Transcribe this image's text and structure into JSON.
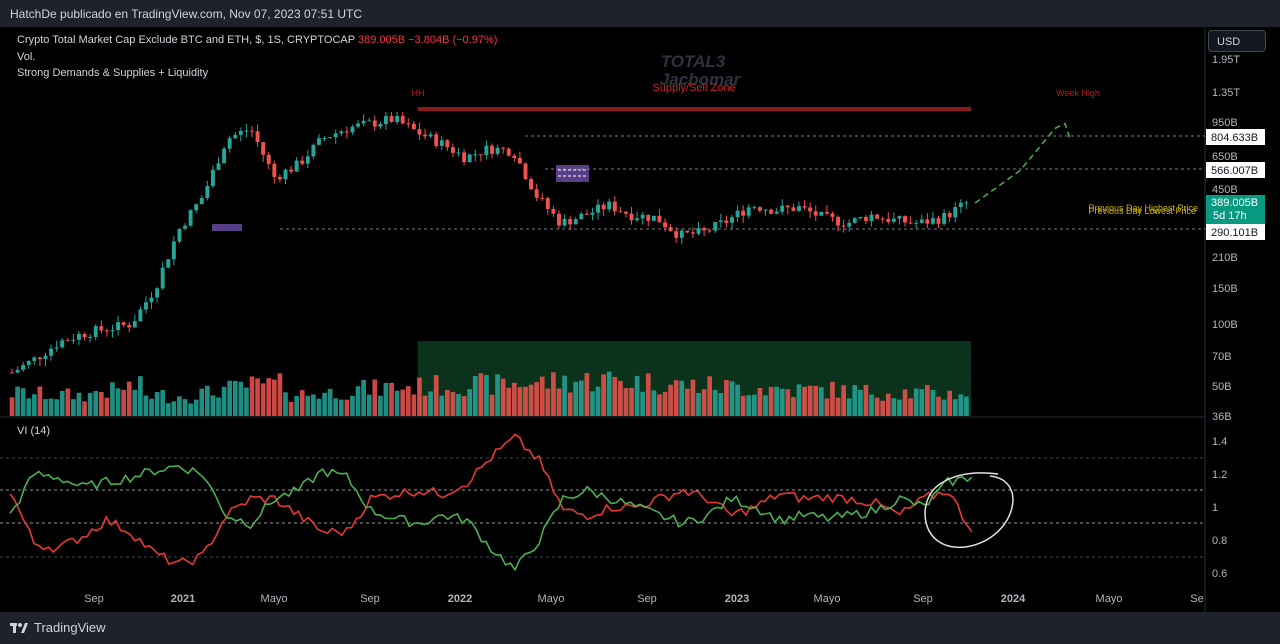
{
  "header": {
    "publish_text": "HatchDe publicado en TradingView.com, Nov 07, 2023 07:51 UTC"
  },
  "legend": {
    "title": "Crypto Total Market Cap Exclude BTC and ETH, $, 1S, CRYPTOCAP",
    "last": "389.005B",
    "change": "−3.804B (−0.97%)",
    "line2": "Vol.",
    "line3": "Strong Demands & Supplies + Liquidity"
  },
  "currency_button": "USD",
  "watermark": {
    "symbol": "TOTAL3",
    "author": "Jacbomar"
  },
  "annotations": {
    "hh": "HH",
    "supply_zone": "Supply/Sell Zone",
    "week_high": "Week High",
    "prev_day_high": "Previous Day Highest Price",
    "prev_day_low": "Previous Day Lowest Price"
  },
  "price_labels": {
    "level_high": "804.633B",
    "level_mid": "566.007B",
    "last": "389.005B",
    "countdown": "5d 17h",
    "level_low": "290.101B"
  },
  "vi_title": "VI (14)",
  "footer": {
    "brand": "TradingView"
  },
  "colors": {
    "up": "#26a69a",
    "down": "#ef5350",
    "vi_plus": "#4caf50",
    "vi_minus": "#e53935",
    "zone_purple": "#7e57c2",
    "supply_red": "#8b1a1a",
    "liquidity_green": "#0d3b1e"
  },
  "chart_data": [
    {
      "type": "candlestick",
      "scale": "log",
      "x": [
        "2020-07-06",
        "2020-08-03",
        "2020-09-07",
        "2020-10-05",
        "2020-11-02",
        "2020-12-07",
        "2021-01-04",
        "2021-02-01",
        "2021-03-01",
        "2021-04-05",
        "2021-05-03",
        "2021-06-07",
        "2021-07-05",
        "2021-08-02",
        "2021-09-06",
        "2021-10-04",
        "2021-11-01",
        "2021-12-06",
        "2022-01-03",
        "2022-02-07",
        "2022-03-07",
        "2022-04-04",
        "2022-05-02",
        "2022-06-06",
        "2022-07-04",
        "2022-08-01",
        "2022-09-05",
        "2022-10-03",
        "2022-11-07",
        "2022-12-05",
        "2023-01-02",
        "2023-02-06",
        "2023-03-06",
        "2023-04-03",
        "2023-05-01",
        "2023-06-05",
        "2023-07-03",
        "2023-08-07",
        "2023-09-04",
        "2023-10-02",
        "2023-11-06"
      ],
      "close": [
        58,
        68,
        82,
        90,
        95,
        100,
        150,
        290,
        420,
        800,
        900,
        520,
        600,
        800,
        900,
        950,
        1000,
        860,
        760,
        650,
        720,
        700,
        420,
        310,
        340,
        380,
        340,
        330,
        270,
        280,
        320,
        380,
        360,
        370,
        330,
        310,
        340,
        320,
        310,
        330,
        389
      ],
      "yticks": [
        "1.95T",
        "1.35T",
        "950B",
        "650B",
        "450B",
        "210B",
        "150B",
        "100B",
        "70B",
        "50B",
        "36B"
      ],
      "levels": {
        "high": 804.633,
        "mid": 566.007,
        "last": 389.005,
        "low": 290.101
      },
      "projection": [
        389,
        560,
        900,
        950,
        800
      ],
      "xticks": [
        "Sep",
        "2021",
        "Mayo",
        "Sep",
        "2022",
        "Mayo",
        "Sep",
        "2023",
        "Mayo",
        "Sep",
        "2024",
        "Mayo",
        "Se"
      ]
    },
    {
      "type": "bar",
      "name": "Vol.",
      "values": [
        44,
        42,
        40,
        40,
        48,
        56,
        40,
        38,
        44,
        52,
        58,
        60,
        42,
        44,
        48,
        52,
        55,
        56,
        58,
        60,
        60,
        62,
        64,
        66,
        68,
        70,
        66,
        64,
        60,
        58,
        56,
        54,
        52,
        50,
        50,
        48,
        46,
        46,
        44,
        42,
        44
      ]
    },
    {
      "type": "line",
      "name": "VI (14)",
      "yticks": [
        "1.4",
        "1.2",
        "1",
        "0.8",
        "0.6"
      ],
      "ylim": [
        0.55,
        1.5
      ],
      "series": [
        {
          "key": "vi_plus",
          "values": [
            0.95,
            1.2,
            1.18,
            1.12,
            1.15,
            1.18,
            1.22,
            1.25,
            1.2,
            0.95,
            0.9,
            1.05,
            1.1,
            1.22,
            1.18,
            0.98,
            0.93,
            0.9,
            0.95,
            0.92,
            0.75,
            0.62,
            0.8,
            1.05,
            1.1,
            1.05,
            1.0,
            0.95,
            0.9,
            0.95,
            1.05,
            1.0,
            0.92,
            0.95,
            0.93,
            0.95,
            0.98,
            1.05,
            1.0,
            1.15,
            1.18
          ]
        },
        {
          "key": "vi_minus",
          "values": [
            1.1,
            0.78,
            0.75,
            0.82,
            0.92,
            0.85,
            0.72,
            0.65,
            0.7,
            0.95,
            1.05,
            1.05,
            0.95,
            0.85,
            0.85,
            1.05,
            1.08,
            1.1,
            1.08,
            1.15,
            1.3,
            1.42,
            1.28,
            0.98,
            0.95,
            1.0,
            1.0,
            1.05,
            1.1,
            1.05,
            0.95,
            1.0,
            1.08,
            1.05,
            1.06,
            1.05,
            1.02,
            0.95,
            1.05,
            1.1,
            0.85
          ]
        }
      ]
    }
  ]
}
